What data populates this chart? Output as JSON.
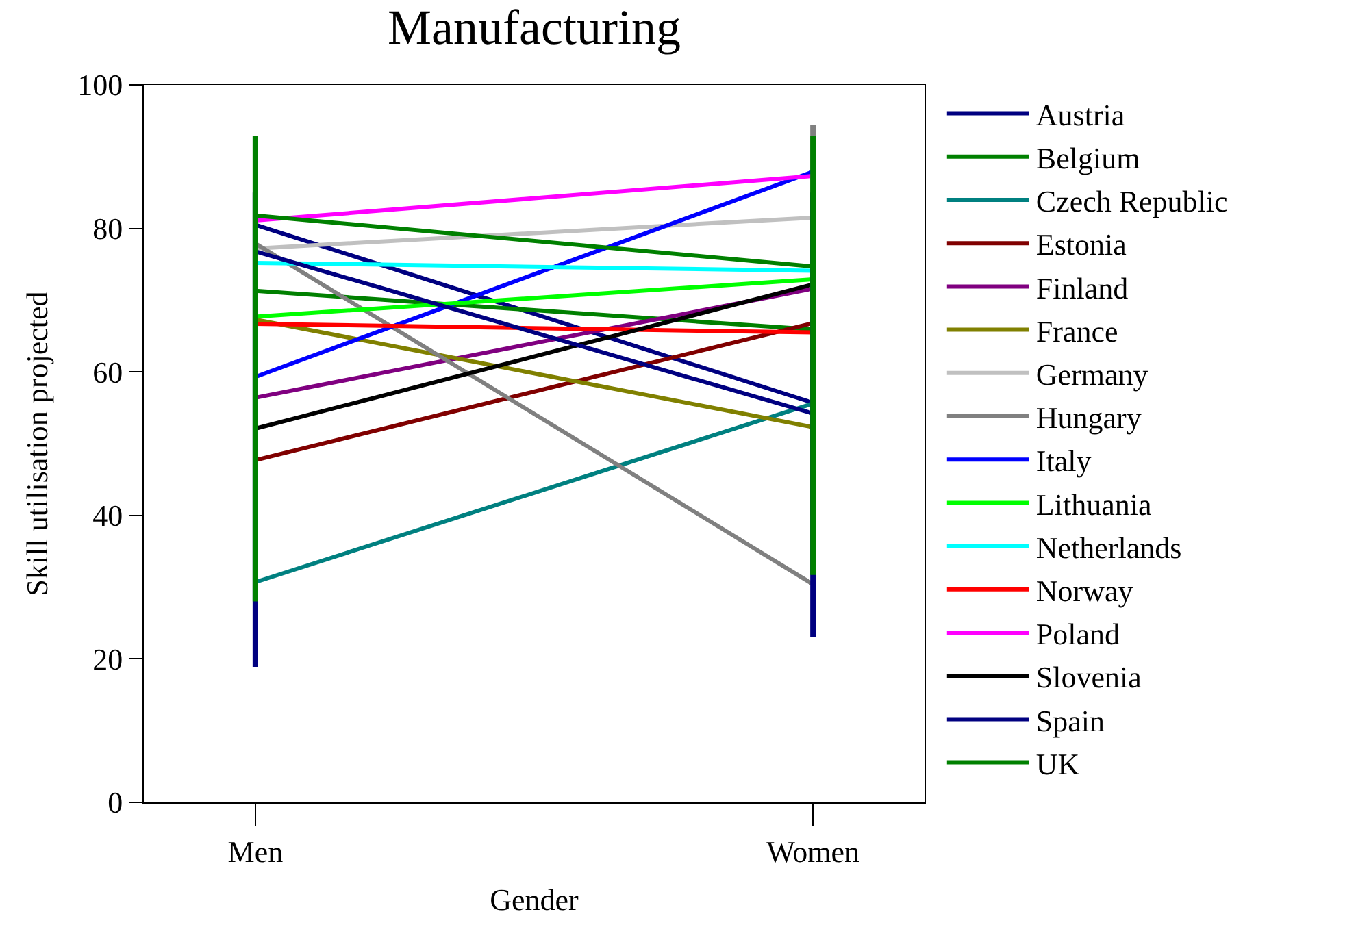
{
  "chart_data": {
    "type": "line",
    "title": "Manufacturing",
    "xlabel": "Gender",
    "ylabel": "Skill utilisation projected",
    "categories": [
      "Men",
      "Women"
    ],
    "series": [
      {
        "name": "Austria",
        "color": "#000080",
        "values": [
          80.5,
          55.7
        ]
      },
      {
        "name": "Belgium",
        "color": "#008000",
        "values": [
          71.3,
          65.9
        ]
      },
      {
        "name": "Czech Republic",
        "color": "#008080",
        "values": [
          30.7,
          55.6
        ]
      },
      {
        "name": "Estonia",
        "color": "#800000",
        "values": [
          47.7,
          66.8
        ]
      },
      {
        "name": "Finland",
        "color": "#800080",
        "values": [
          56.4,
          71.6
        ]
      },
      {
        "name": "France",
        "color": "#808000",
        "values": [
          67.3,
          52.3
        ]
      },
      {
        "name": "Germany",
        "color": "#c0c0c0",
        "values": [
          77.2,
          81.5
        ]
      },
      {
        "name": "Hungary",
        "color": "#808080",
        "values": [
          77.9,
          30.4
        ],
        "errors": [
          null,
          [
            40,
            94.4
          ]
        ]
      },
      {
        "name": "Italy",
        "color": "#0000ff",
        "values": [
          59.3,
          87.9
        ]
      },
      {
        "name": "Lithuania",
        "color": "#00ff00",
        "values": [
          67.7,
          72.9
        ]
      },
      {
        "name": "Netherlands",
        "color": "#00ffff",
        "values": [
          75.2,
          74.1
        ]
      },
      {
        "name": "Norway",
        "color": "#ff0000",
        "values": [
          66.7,
          65.5
        ]
      },
      {
        "name": "Poland",
        "color": "#ff00ff",
        "values": [
          81.1,
          87.3
        ]
      },
      {
        "name": "Slovenia",
        "color": "#000000",
        "values": [
          52.1,
          72.2
        ]
      },
      {
        "name": "Spain",
        "color": "#000080",
        "values": [
          76.8,
          54.2
        ],
        "errors": [
          [
            18.9,
            85
          ],
          [
            23.0,
            85
          ]
        ]
      },
      {
        "name": "UK",
        "color": "#008000",
        "values": [
          81.8,
          74.7
        ],
        "errors": [
          [
            28.0,
            92.9
          ],
          [
            31.7,
            92.9
          ]
        ]
      }
    ],
    "ylim": [
      0,
      100
    ],
    "yticks": [
      0,
      20,
      40,
      60,
      80,
      100
    ],
    "legend": "right",
    "marker": "none",
    "line_style": "solid"
  }
}
